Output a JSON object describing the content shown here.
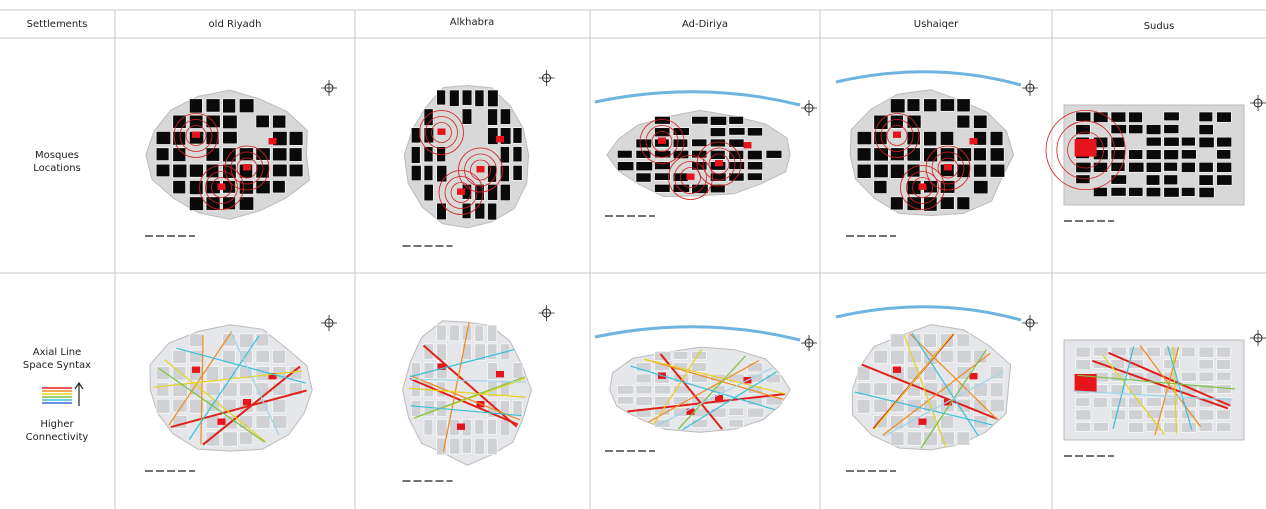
{
  "table": {
    "header": [
      "Settlements",
      "old Riyadh",
      "Alkhabra",
      "Ad-Diriya",
      "Ushaiqer",
      "Sudus"
    ],
    "rows": [
      {
        "label": [
          "Mosques",
          "Locations"
        ]
      },
      {
        "label": [
          "Axial Line",
          "Space Syntax"
        ],
        "legend": [
          "Higher",
          "Connectivity"
        ]
      }
    ]
  }
}
